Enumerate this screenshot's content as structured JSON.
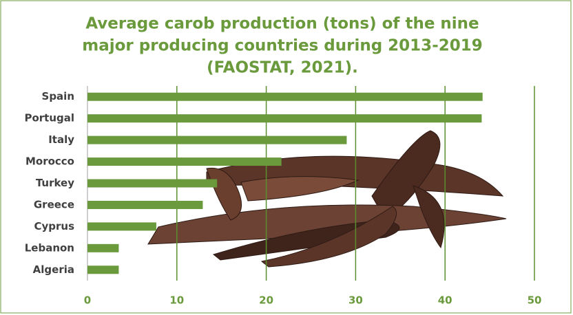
{
  "chart_data": {
    "type": "bar",
    "orientation": "horizontal",
    "title": [
      "Average carob production (tons) of the nine",
      "major producing countries during 2013-2019",
      "(FAOSTAT, 2021)."
    ],
    "categories": [
      "Spain",
      "Portugal",
      "Italy",
      "Morocco",
      "Turkey",
      "Greece",
      "Cyprus",
      "Lebanon",
      "Algeria"
    ],
    "values": [
      44.2,
      44.1,
      29.0,
      21.7,
      14.5,
      12.9,
      7.7,
      3.5,
      3.5
    ],
    "color": "#6a9a3c",
    "xlim": [
      0,
      50
    ],
    "xticks": [
      0,
      10,
      20,
      30,
      40,
      50
    ],
    "grid": true,
    "grid_color": "#5b8f2e"
  }
}
